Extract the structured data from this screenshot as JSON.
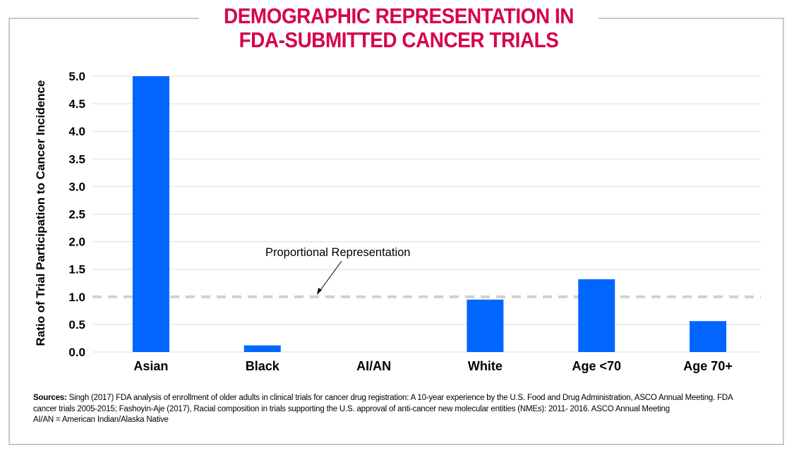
{
  "title": "DEMOGRAPHIC REPRESENTATION IN\nFDA-SUBMITTED CANCER TRIALS",
  "colors": {
    "bar": "#0066ff",
    "title": "#d6004f",
    "reference_line": "#d0d0d0",
    "grid": "#dddddd"
  },
  "chart_data": {
    "type": "bar",
    "categories": [
      "Asian",
      "Black",
      "AI/AN",
      "White",
      "Age <70",
      "Age 70+"
    ],
    "values": [
      5.0,
      0.12,
      0.0,
      0.95,
      1.32,
      0.56
    ],
    "ylabel": "Ratio of Trial Participation to Cancer Incidence",
    "xlabel": "",
    "ylim": [
      0,
      5.0
    ],
    "yticks": [
      "0.0",
      "0.5",
      "1.0",
      "1.5",
      "2.0",
      "2.5",
      "3.0",
      "3.5",
      "4.0",
      "4.5",
      "5.0"
    ],
    "grid": true,
    "reference_line": {
      "value": 1.0,
      "style": "dashed"
    },
    "annotation": "Proportional Representation"
  },
  "sources": {
    "label": "Sources:",
    "line1": "Singh (2017) FDA analysis of enrollment of older adults in clinical trials for cancer drug registration: A 10-year experience by the U.S. Food and Drug Administration, ASCO Annual Meeting.  FDA",
    "line2": "cancer trials 2005-2015; Fashoyin-Aje (2017), Racial composition in trials supporting the U.S. approval of anti-cancer new molecular entities (NMEs): 2011- 2016. ASCO Annual Meeting",
    "line3": "AI/AN = American Indian/Alaska Native"
  }
}
